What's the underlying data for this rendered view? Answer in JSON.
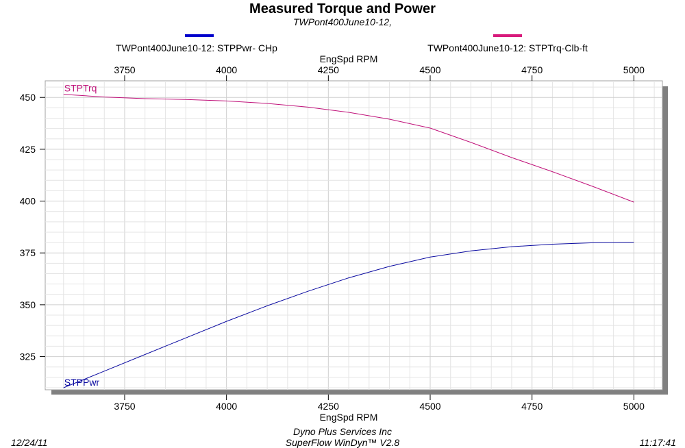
{
  "chart_data": {
    "type": "line",
    "title": "Measured Torque and Power",
    "subtitle": "TWPont400June10-12,",
    "xlabel": "EngSpd  RPM",
    "xlim": [
      3555,
      5070
    ],
    "ylim": [
      309,
      458
    ],
    "x_ticks": [
      3750,
      4000,
      4250,
      4500,
      4750,
      5000
    ],
    "y_ticks": [
      325,
      350,
      375,
      400,
      425,
      450
    ],
    "grid": true,
    "series": [
      {
        "name": "TWPont400June10-12: STPPwr- CHp",
        "label": "STPPwr",
        "color": "#0a0aa0",
        "legend_color": "#0000cc",
        "x": [
          3600,
          3700,
          3800,
          3900,
          4000,
          4100,
          4200,
          4300,
          4400,
          4500,
          4600,
          4700,
          4800,
          4900,
          5000
        ],
        "y": [
          310,
          318,
          326,
          334,
          342,
          349.5,
          356.5,
          363,
          368.5,
          373,
          376,
          378,
          379.2,
          379.9,
          380.2
        ]
      },
      {
        "name": "TWPont400June10-12: STPTrq-Clb-ft",
        "label": "STPTrq",
        "color": "#c0127a",
        "legend_color": "#d81b7c",
        "x": [
          3600,
          3700,
          3800,
          3900,
          4000,
          4100,
          4200,
          4300,
          4400,
          4500,
          4600,
          4700,
          4800,
          4900,
          5000
        ],
        "y": [
          451.5,
          450.2,
          449.4,
          449,
          448.3,
          447.1,
          445.3,
          442.8,
          439.5,
          435.2,
          428.3,
          421,
          414.2,
          407,
          399.5
        ]
      }
    ]
  },
  "footer": {
    "date": "12/24/11",
    "company": "Dyno Plus Services Inc",
    "software": "SuperFlow WinDyn™ V2.8",
    "time": "11:17:41"
  }
}
